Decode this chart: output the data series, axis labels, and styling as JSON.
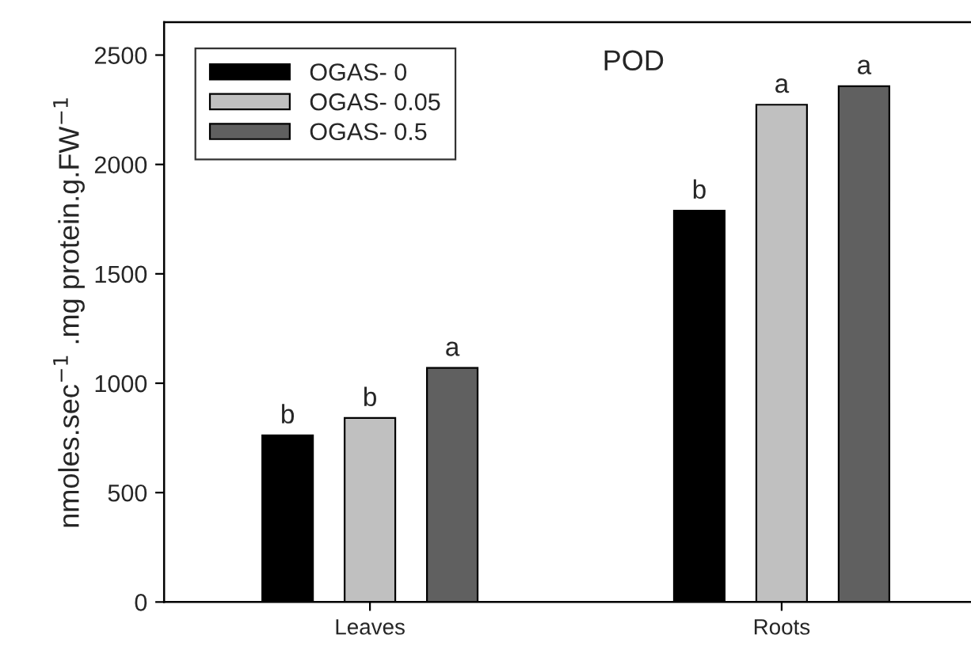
{
  "chart_data": {
    "type": "bar",
    "title": "POD",
    "ylabel": "nmoles.sec$^{−1}$ .mg protein.g.FW$^{−1}$",
    "categories": [
      "Leaves",
      "Roots"
    ],
    "series": [
      {
        "name": "OGAS- 0",
        "color": "#000000",
        "values": [
          762,
          1789
        ],
        "value_labels": [
          "b",
          "b"
        ]
      },
      {
        "name": "OGAS- 0.05",
        "color": "#c0c0c0",
        "values": [
          841,
          2273
        ],
        "value_labels": [
          "b",
          "a"
        ]
      },
      {
        "name": "OGAS- 0.5",
        "color": "#606060",
        "values": [
          1070,
          2358
        ],
        "value_labels": [
          "a",
          "a"
        ]
      }
    ],
    "ylim": [
      0,
      2650
    ],
    "yticks": [
      0,
      500,
      1000,
      1500,
      2000,
      2500
    ],
    "legend": "top left",
    "grid": false
  }
}
